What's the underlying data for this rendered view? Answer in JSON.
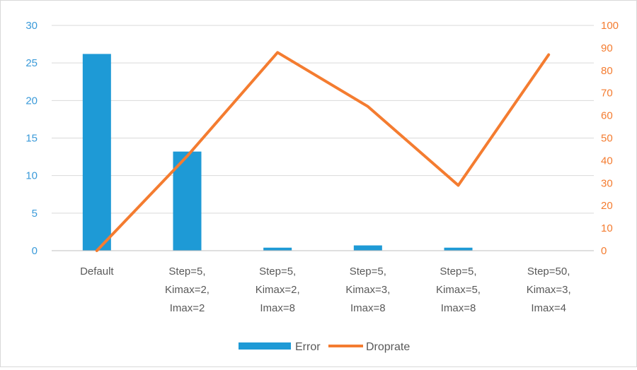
{
  "chart_data": {
    "type": "bar+line",
    "categories": [
      [
        "Default"
      ],
      [
        "Step=5,",
        "Kimax=2,",
        "Imax=2"
      ],
      [
        "Step=5,",
        "Kimax=2,",
        "Imax=8"
      ],
      [
        "Step=5,",
        "Kimax=3,",
        "Imax=8"
      ],
      [
        "Step=5,",
        "Kimax=5,",
        "Imax=8"
      ],
      [
        "Step=50,",
        "Kimax=3,",
        "Imax=4"
      ]
    ],
    "series": [
      {
        "name": "Error",
        "type": "bar",
        "axis": "left",
        "color": "#1e9ad6",
        "values": [
          26.2,
          13.2,
          0.4,
          0.7,
          0.4,
          0
        ]
      },
      {
        "name": "Droprate",
        "type": "line",
        "axis": "right",
        "color": "#f47c30",
        "values": [
          0,
          42,
          88,
          64,
          29,
          87
        ]
      }
    ],
    "left_axis": {
      "ylim": [
        0,
        30
      ],
      "ticks": [
        "0",
        "5",
        "10",
        "15",
        "20",
        "25",
        "30"
      ],
      "color": "#3a9ad9"
    },
    "right_axis": {
      "ylim": [
        0,
        100
      ],
      "ticks": [
        "0",
        "10",
        "20",
        "30",
        "40",
        "50",
        "60",
        "70",
        "80",
        "90",
        "100"
      ],
      "color": "#f47c30"
    },
    "grid": true,
    "legend": "bottom"
  }
}
